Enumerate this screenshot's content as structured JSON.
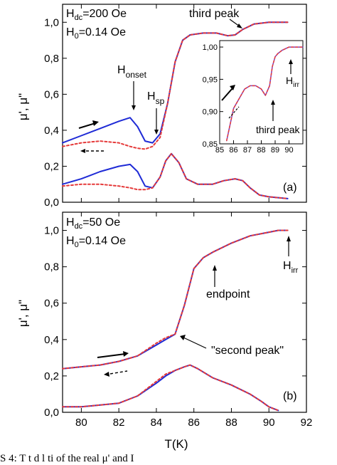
{
  "chart_data": [
    {
      "panel_label": "(a)",
      "type": "line",
      "xlabel": "T(K)",
      "ylabel": "μ', μ\"",
      "xlim": [
        79,
        92
      ],
      "ylim": [
        0,
        1.1
      ],
      "yticks": [
        "0,0",
        "0,2",
        "0,4",
        "0,6",
        "0,8",
        "1,0"
      ],
      "annotations": {
        "hdc": "H",
        "hdc_sub": "dc",
        "hdc_val": "=200 Oe",
        "h0": "H",
        "h0_sub": "0",
        "h0_val": "=0.14 Oe",
        "onset": "H",
        "onset_sub": "onset",
        "sp": "H",
        "sp_sub": "sp",
        "third_peak": "third peak"
      },
      "series": [
        {
          "style": "solid",
          "color": "#1f2bd6",
          "x": [
            79,
            80,
            81,
            82,
            82.6,
            83.0,
            83.4,
            83.8,
            84.2,
            84.6,
            85.0,
            85.4,
            85.8,
            86.5,
            87.2,
            87.8,
            88.2,
            88.6,
            89.2,
            90,
            91
          ],
          "y": [
            0.33,
            0.37,
            0.41,
            0.45,
            0.47,
            0.42,
            0.34,
            0.33,
            0.38,
            0.55,
            0.78,
            0.9,
            0.93,
            0.94,
            0.94,
            0.925,
            0.93,
            0.96,
            0.99,
            1.0,
            1.0
          ]
        },
        {
          "style": "dotted",
          "color": "#e53a3a",
          "x": [
            79,
            80,
            81,
            82,
            82.6,
            83.0,
            83.4,
            83.8,
            84.2,
            84.6,
            85.0,
            85.4,
            85.8,
            86.5,
            87.2,
            87.8,
            88.2,
            88.6,
            89.2,
            90,
            91
          ],
          "y": [
            0.31,
            0.33,
            0.34,
            0.33,
            0.31,
            0.3,
            0.295,
            0.31,
            0.36,
            0.55,
            0.78,
            0.9,
            0.93,
            0.94,
            0.94,
            0.925,
            0.93,
            0.96,
            0.99,
            1.0,
            1.0
          ]
        },
        {
          "style": "solid",
          "color": "#1f2bd6",
          "x": [
            79,
            80,
            81,
            82,
            82.6,
            83.0,
            83.4,
            83.8,
            84.2,
            84.5,
            84.8,
            85.2,
            85.6,
            86.2,
            87.0,
            87.6,
            88.2,
            88.6,
            89.0,
            89.5,
            90,
            91
          ],
          "y": [
            0.1,
            0.13,
            0.17,
            0.2,
            0.21,
            0.17,
            0.09,
            0.08,
            0.14,
            0.23,
            0.27,
            0.22,
            0.13,
            0.1,
            0.1,
            0.12,
            0.13,
            0.12,
            0.08,
            0.04,
            0.03,
            0.02
          ]
        },
        {
          "style": "dotted",
          "color": "#e53a3a",
          "x": [
            79,
            80,
            81,
            82,
            82.6,
            83.0,
            83.4,
            83.8,
            84.2,
            84.5,
            84.8,
            85.2,
            85.6,
            86.2,
            87.0,
            87.6,
            88.2,
            88.6,
            89.0,
            89.5,
            90,
            91
          ],
          "y": [
            0.09,
            0.1,
            0.1,
            0.09,
            0.08,
            0.07,
            0.07,
            0.08,
            0.14,
            0.23,
            0.27,
            0.22,
            0.13,
            0.1,
            0.1,
            0.12,
            0.13,
            0.12,
            0.08,
            0.04,
            0.03,
            0.02
          ]
        }
      ],
      "inset": {
        "type": "line",
        "xlim": [
          85,
          91
        ],
        "ylim": [
          0.85,
          1.01
        ],
        "xticks": [
          "85",
          "86",
          "87",
          "88",
          "89",
          "90"
        ],
        "yticks": [
          "0,85",
          "0,90",
          "0,95",
          "1,00"
        ],
        "annotations": {
          "irr": "H",
          "irr_sub": "irr",
          "third_peak": "third peak"
        },
        "series": [
          {
            "style": "solid",
            "color": "#6a3fd2",
            "x": [
              85.5,
              85.7,
              86.0,
              86.4,
              86.8,
              87.2,
              87.6,
              88.0,
              88.3,
              88.6,
              88.8,
              89.0,
              89.2,
              89.5,
              90,
              91
            ],
            "y": [
              0.855,
              0.875,
              0.905,
              0.92,
              0.935,
              0.94,
              0.94,
              0.935,
              0.925,
              0.94,
              0.97,
              0.985,
              0.99,
              0.995,
              1.0,
              1.0
            ]
          },
          {
            "style": "dotted",
            "color": "#e53a3a",
            "x": [
              85.5,
              85.7,
              86.0,
              86.4,
              86.8,
              87.2,
              87.6,
              88.0,
              88.3,
              88.6,
              88.8,
              89.0,
              89.2,
              89.5,
              90,
              91
            ],
            "y": [
              0.855,
              0.875,
              0.905,
              0.92,
              0.935,
              0.94,
              0.94,
              0.935,
              0.925,
              0.94,
              0.97,
              0.985,
              0.99,
              0.995,
              1.0,
              1.0
            ]
          }
        ]
      }
    },
    {
      "panel_label": "(b)",
      "type": "line",
      "xlabel": "T(K)",
      "ylabel": "μ', μ\"",
      "xlim": [
        79,
        92
      ],
      "ylim": [
        0,
        1.1
      ],
      "xticks": [
        "80",
        "82",
        "84",
        "86",
        "88",
        "90",
        "92"
      ],
      "yticks": [
        "0,0",
        "0,2",
        "0,4",
        "0,6",
        "0,8",
        "1,0"
      ],
      "annotations": {
        "hdc": "H",
        "hdc_sub": "dc",
        "hdc_val": "=50 Oe",
        "h0": "H",
        "h0_sub": "0",
        "h0_val": "=0.14 Oe",
        "second_peak": "\"second peak\"",
        "endpoint": "endpoint",
        "irr": "H",
        "irr_sub": "irr"
      },
      "series": [
        {
          "style": "solid",
          "color": "#1f2bd6",
          "x": [
            79,
            80,
            81,
            82,
            83,
            84,
            84.5,
            85,
            85.5,
            86,
            86.5,
            87,
            88,
            89,
            90,
            90.5,
            91
          ],
          "y": [
            0.24,
            0.25,
            0.26,
            0.28,
            0.31,
            0.37,
            0.4,
            0.43,
            0.59,
            0.79,
            0.85,
            0.88,
            0.93,
            0.97,
            0.99,
            1.0,
            1.0
          ]
        },
        {
          "style": "dotted",
          "color": "#e53a3a",
          "x": [
            79,
            80,
            81,
            82,
            83,
            84,
            84.5,
            85,
            85.5,
            86,
            86.5,
            87,
            88,
            89,
            90,
            90.5,
            91
          ],
          "y": [
            0.24,
            0.25,
            0.26,
            0.28,
            0.31,
            0.38,
            0.41,
            0.43,
            0.59,
            0.79,
            0.85,
            0.88,
            0.93,
            0.97,
            0.99,
            1.0,
            1.0
          ]
        },
        {
          "style": "solid",
          "color": "#1f2bd6",
          "x": [
            79,
            80,
            81,
            82,
            83,
            84,
            84.5,
            85,
            85.5,
            85.8,
            86.2,
            87,
            88,
            89,
            89.6,
            90,
            90.5
          ],
          "y": [
            0.03,
            0.03,
            0.04,
            0.05,
            0.09,
            0.16,
            0.2,
            0.23,
            0.25,
            0.26,
            0.24,
            0.19,
            0.15,
            0.1,
            0.06,
            0.03,
            0.01
          ]
        },
        {
          "style": "dotted",
          "color": "#e53a3a",
          "x": [
            79,
            80,
            81,
            82,
            83,
            84,
            84.5,
            85,
            85.5,
            85.8,
            86.2,
            87,
            88,
            89,
            89.6,
            90,
            90.5
          ],
          "y": [
            0.03,
            0.03,
            0.04,
            0.05,
            0.09,
            0.17,
            0.21,
            0.23,
            0.25,
            0.26,
            0.24,
            0.19,
            0.15,
            0.1,
            0.06,
            0.03,
            0.01
          ]
        }
      ]
    }
  ],
  "caption": "S   4:   T       t         d    l ti   of the real μ' and I"
}
